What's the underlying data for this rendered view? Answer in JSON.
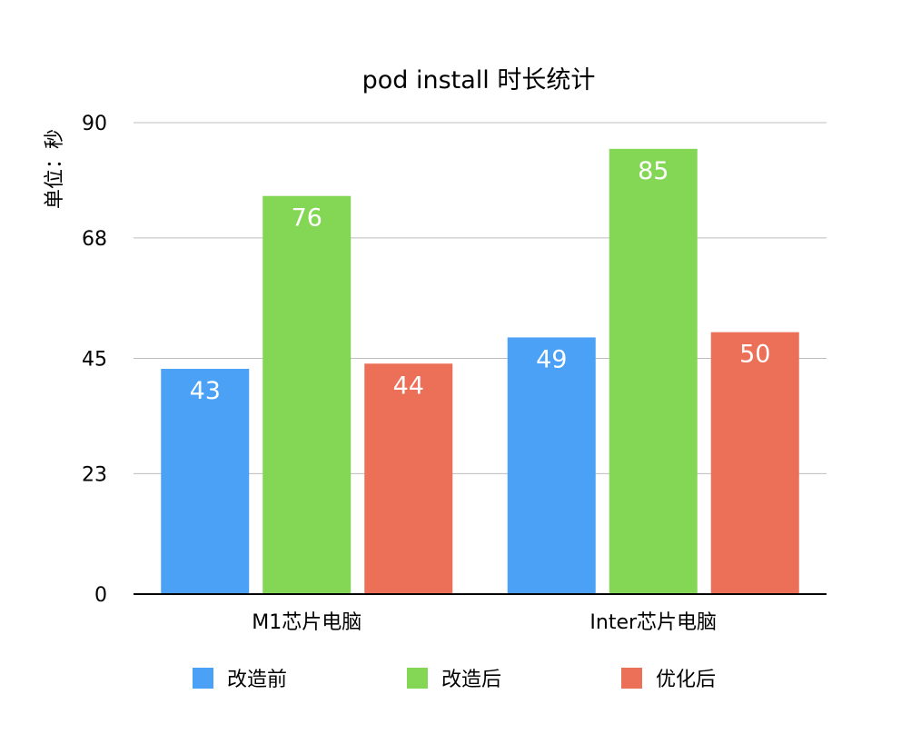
{
  "chart_data": {
    "type": "bar",
    "title": "pod install 时长统计",
    "xlabel": "",
    "ylabel": "单位：秒",
    "categories": [
      "M1芯片电脑",
      "Inter芯片电脑"
    ],
    "series": [
      {
        "name": "改造前",
        "values": [
          43,
          49
        ],
        "color": "#4aa1f5"
      },
      {
        "name": "改造后",
        "values": [
          76,
          85
        ],
        "color": "#84d655"
      },
      {
        "name": "优化后",
        "values": [
          44,
          50
        ],
        "color": "#ec6f58"
      }
    ],
    "ylim": [
      0,
      90
    ],
    "yticks": [
      0,
      23,
      45,
      68,
      90
    ],
    "grid": true,
    "legend_position": "bottom",
    "data_labels": true
  }
}
